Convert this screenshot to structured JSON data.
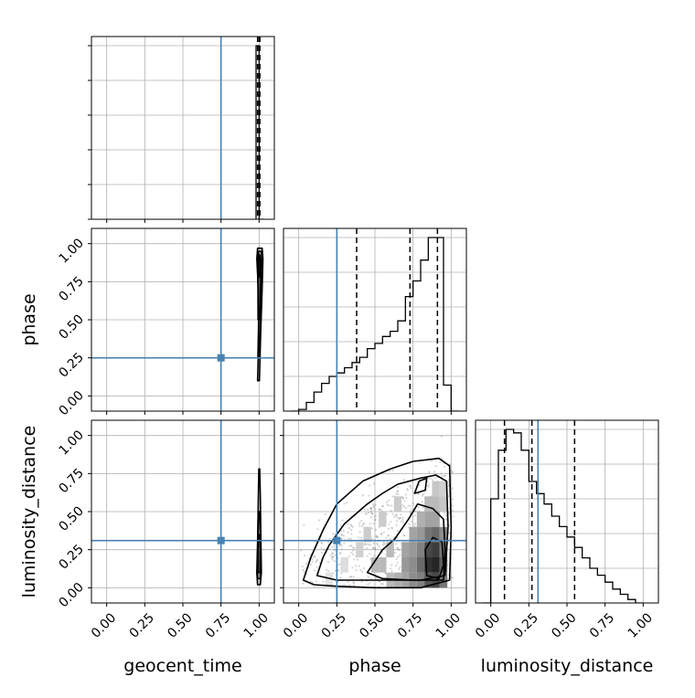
{
  "chart_data": {
    "type": "corner",
    "parameters": [
      "geocent_time",
      "phase",
      "luminosity_distance"
    ],
    "truths": {
      "geocent_time": 0.75,
      "phase": 0.25,
      "luminosity_distance": 0.31
    },
    "color_truth": "#4682b4",
    "color_data": "#000000",
    "grid": true,
    "tick_labels": [
      "0.00",
      "0.25",
      "0.50",
      "0.75",
      "1.00"
    ],
    "tick_values": [
      0,
      0.25,
      0.5,
      0.75,
      1.0
    ],
    "axis_range": [
      -0.1,
      1.1
    ],
    "histograms": {
      "geocent_time": {
        "bin_edges": [
          0.98,
          0.995,
          1.0,
          1.03
        ],
        "counts": [
          1.0,
          1.0,
          0.0
        ],
        "quantiles": [
          0.99,
          1.0,
          1.005
        ]
      },
      "phase": {
        "bin_edges": [
          -0.05,
          0.0,
          0.05,
          0.1,
          0.15,
          0.2,
          0.25,
          0.3,
          0.35,
          0.4,
          0.45,
          0.5,
          0.55,
          0.6,
          0.65,
          0.7,
          0.75,
          0.8,
          0.85,
          0.9,
          0.95,
          1.0,
          1.05
        ],
        "counts": [
          0.0,
          0.01,
          0.05,
          0.11,
          0.16,
          0.2,
          0.22,
          0.25,
          0.28,
          0.31,
          0.36,
          0.39,
          0.43,
          0.46,
          0.52,
          0.66,
          0.75,
          0.87,
          1.0,
          1.0,
          0.15,
          0.0
        ],
        "quantiles": [
          0.38,
          0.73,
          0.91
        ]
      },
      "luminosity_distance": {
        "bin_edges": [
          -0.05,
          0.0,
          0.05,
          0.1,
          0.15,
          0.2,
          0.25,
          0.3,
          0.35,
          0.4,
          0.45,
          0.5,
          0.55,
          0.6,
          0.65,
          0.7,
          0.75,
          0.8,
          0.85,
          0.9,
          0.95,
          1.0
        ],
        "counts": [
          0.0,
          0.6,
          0.88,
          1.0,
          0.98,
          0.88,
          0.7,
          0.63,
          0.57,
          0.5,
          0.44,
          0.38,
          0.32,
          0.26,
          0.2,
          0.16,
          0.12,
          0.08,
          0.05,
          0.02,
          0.0
        ],
        "quantiles": [
          0.09,
          0.27,
          0.55
        ]
      }
    },
    "panels_2d": [
      {
        "x": "geocent_time",
        "y": "phase",
        "contours": [
          [
            [
              0.99,
              0.1
            ],
            [
              0.998,
              0.4
            ],
            [
              0.995,
              0.7
            ],
            [
              0.985,
              0.9
            ],
            [
              0.99,
              0.97
            ],
            [
              1.02,
              0.97
            ],
            [
              1.025,
              0.9
            ],
            [
              1.02,
              0.7
            ],
            [
              1.01,
              0.4
            ],
            [
              1.002,
              0.1
            ]
          ],
          [
            [
              0.992,
              0.25
            ],
            [
              0.998,
              0.55
            ],
            [
              0.99,
              0.85
            ],
            [
              0.995,
              0.95
            ],
            [
              1.015,
              0.95
            ],
            [
              1.02,
              0.85
            ],
            [
              1.01,
              0.55
            ],
            [
              1.004,
              0.25
            ]
          ],
          [
            [
              0.993,
              0.5
            ],
            [
              0.992,
              0.85
            ],
            [
              1.0,
              0.93
            ],
            [
              1.012,
              0.88
            ],
            [
              1.008,
              0.6
            ],
            [
              1.002,
              0.5
            ]
          ],
          [
            [
              0.995,
              0.8
            ],
            [
              0.997,
              0.9
            ],
            [
              1.006,
              0.92
            ],
            [
              1.008,
              0.84
            ],
            [
              1.002,
              0.78
            ]
          ]
        ]
      },
      {
        "x": "geocent_time",
        "y": "luminosity_distance",
        "contours": [
          [
            [
              0.99,
              0.02
            ],
            [
              0.985,
              0.1
            ],
            [
              0.99,
              0.3
            ],
            [
              0.995,
              0.6
            ],
            [
              0.998,
              0.78
            ],
            [
              1.004,
              0.78
            ],
            [
              1.008,
              0.6
            ],
            [
              1.012,
              0.3
            ],
            [
              1.015,
              0.1
            ],
            [
              1.008,
              0.02
            ]
          ],
          [
            [
              0.99,
              0.06
            ],
            [
              0.988,
              0.15
            ],
            [
              0.993,
              0.35
            ],
            [
              0.997,
              0.5
            ],
            [
              1.004,
              0.5
            ],
            [
              1.008,
              0.35
            ],
            [
              1.012,
              0.15
            ],
            [
              1.008,
              0.06
            ]
          ],
          [
            [
              0.992,
              0.1
            ],
            [
              0.993,
              0.25
            ],
            [
              0.997,
              0.35
            ],
            [
              1.004,
              0.35
            ],
            [
              1.008,
              0.25
            ],
            [
              1.006,
              0.1
            ]
          ]
        ]
      },
      {
        "x": "phase",
        "y": "luminosity_distance",
        "contours": [
          [
            [
              0.1,
              0.02
            ],
            [
              0.03,
              0.05
            ],
            [
              0.08,
              0.2
            ],
            [
              0.16,
              0.38
            ],
            [
              0.25,
              0.55
            ],
            [
              0.42,
              0.7
            ],
            [
              0.6,
              0.78
            ],
            [
              0.75,
              0.83
            ],
            [
              0.92,
              0.85
            ],
            [
              0.99,
              0.8
            ],
            [
              1.0,
              0.4
            ],
            [
              0.99,
              0.05
            ],
            [
              0.8,
              0.0
            ],
            [
              0.5,
              0.0
            ],
            [
              0.25,
              0.01
            ]
          ],
          [
            [
              0.12,
              0.08
            ],
            [
              0.16,
              0.2
            ],
            [
              0.2,
              0.28
            ],
            [
              0.3,
              0.42
            ],
            [
              0.45,
              0.55
            ],
            [
              0.55,
              0.62
            ],
            [
              0.65,
              0.68
            ],
            [
              0.8,
              0.72
            ],
            [
              0.9,
              0.74
            ],
            [
              0.97,
              0.7
            ],
            [
              0.98,
              0.4
            ],
            [
              0.96,
              0.08
            ],
            [
              0.8,
              0.05
            ],
            [
              0.5,
              0.05
            ],
            [
              0.25,
              0.05
            ]
          ],
          [
            [
              0.45,
              0.1
            ],
            [
              0.55,
              0.25
            ],
            [
              0.63,
              0.32
            ],
            [
              0.72,
              0.45
            ],
            [
              0.78,
              0.55
            ],
            [
              0.88,
              0.52
            ],
            [
              0.95,
              0.45
            ],
            [
              0.96,
              0.25
            ],
            [
              0.95,
              0.05
            ],
            [
              0.75,
              0.05
            ],
            [
              0.55,
              0.06
            ]
          ],
          [
            [
              0.76,
              0.62
            ],
            [
              0.79,
              0.7
            ],
            [
              0.84,
              0.72
            ],
            [
              0.83,
              0.64
            ]
          ],
          [
            [
              0.84,
              0.08
            ],
            [
              0.83,
              0.25
            ],
            [
              0.88,
              0.33
            ],
            [
              0.94,
              0.3
            ],
            [
              0.95,
              0.15
            ],
            [
              0.92,
              0.06
            ]
          ]
        ],
        "density_cells": [
          {
            "x": 0.75,
            "y": 0.05,
            "d": 0.5
          },
          {
            "x": 0.8,
            "y": 0.05,
            "d": 0.55
          },
          {
            "x": 0.85,
            "y": 0.05,
            "d": 0.75
          },
          {
            "x": 0.9,
            "y": 0.05,
            "d": 0.8
          },
          {
            "x": 0.95,
            "y": 0.05,
            "d": 0.6
          },
          {
            "x": 0.8,
            "y": 0.15,
            "d": 0.65
          },
          {
            "x": 0.85,
            "y": 0.15,
            "d": 0.9
          },
          {
            "x": 0.9,
            "y": 0.15,
            "d": 0.95
          },
          {
            "x": 0.95,
            "y": 0.15,
            "d": 0.7
          },
          {
            "x": 0.8,
            "y": 0.25,
            "d": 0.55
          },
          {
            "x": 0.85,
            "y": 0.25,
            "d": 0.8
          },
          {
            "x": 0.9,
            "y": 0.25,
            "d": 0.85
          },
          {
            "x": 0.95,
            "y": 0.25,
            "d": 0.6
          },
          {
            "x": 0.85,
            "y": 0.35,
            "d": 0.6
          },
          {
            "x": 0.9,
            "y": 0.35,
            "d": 0.65
          },
          {
            "x": 0.95,
            "y": 0.35,
            "d": 0.5
          },
          {
            "x": 0.6,
            "y": 0.05,
            "d": 0.3
          },
          {
            "x": 0.65,
            "y": 0.05,
            "d": 0.35
          },
          {
            "x": 0.7,
            "y": 0.05,
            "d": 0.4
          },
          {
            "x": 0.7,
            "y": 0.15,
            "d": 0.45
          },
          {
            "x": 0.75,
            "y": 0.15,
            "d": 0.5
          },
          {
            "x": 0.7,
            "y": 0.25,
            "d": 0.4
          },
          {
            "x": 0.75,
            "y": 0.25,
            "d": 0.45
          },
          {
            "x": 0.75,
            "y": 0.35,
            "d": 0.4
          },
          {
            "x": 0.8,
            "y": 0.35,
            "d": 0.45
          },
          {
            "x": 0.8,
            "y": 0.45,
            "d": 0.35
          },
          {
            "x": 0.85,
            "y": 0.45,
            "d": 0.4
          },
          {
            "x": 0.9,
            "y": 0.45,
            "d": 0.4
          },
          {
            "x": 0.85,
            "y": 0.55,
            "d": 0.3
          },
          {
            "x": 0.9,
            "y": 0.55,
            "d": 0.3
          },
          {
            "x": 0.95,
            "y": 0.55,
            "d": 0.25
          },
          {
            "x": 0.9,
            "y": 0.65,
            "d": 0.25
          },
          {
            "x": 0.95,
            "y": 0.65,
            "d": 0.2
          },
          {
            "x": 0.5,
            "y": 0.15,
            "d": 0.3
          },
          {
            "x": 0.55,
            "y": 0.15,
            "d": 0.3
          },
          {
            "x": 0.6,
            "y": 0.25,
            "d": 0.3
          },
          {
            "x": 0.4,
            "y": 0.25,
            "d": 0.2
          },
          {
            "x": 0.45,
            "y": 0.35,
            "d": 0.22
          },
          {
            "x": 0.55,
            "y": 0.45,
            "d": 0.22
          },
          {
            "x": 0.65,
            "y": 0.55,
            "d": 0.22
          },
          {
            "x": 0.3,
            "y": 0.15,
            "d": 0.15
          },
          {
            "x": 0.2,
            "y": 0.05,
            "d": 0.12
          }
        ]
      }
    ]
  }
}
